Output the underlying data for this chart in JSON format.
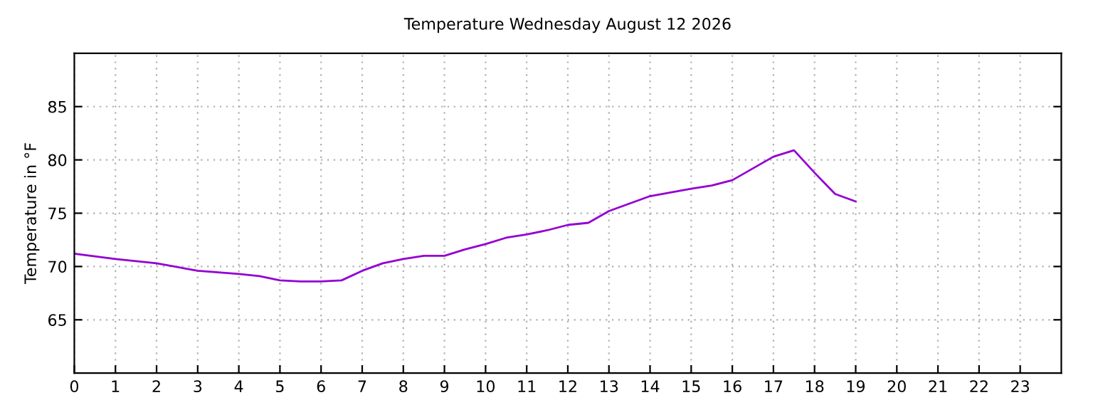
{
  "chart_data": {
    "type": "line",
    "title": "Temperature Wednesday August 12 2026",
    "ylabel": "Temperature in °F",
    "x": [
      0,
      1,
      2,
      3,
      4,
      4.5,
      5,
      5.5,
      6,
      6.5,
      7,
      7.5,
      8,
      8.5,
      9,
      9.5,
      10,
      10.5,
      11,
      11.5,
      12,
      12.5,
      13,
      13.5,
      14,
      15,
      15.5,
      16,
      16.5,
      17,
      17.5,
      18,
      18.5,
      19
    ],
    "series": [
      {
        "color": "#9400d3",
        "values": [
          71.2,
          70.7,
          70.3,
          69.6,
          69.3,
          69.1,
          68.7,
          68.6,
          68.6,
          68.7,
          69.6,
          70.3,
          70.7,
          71.0,
          71.0,
          71.6,
          72.1,
          72.7,
          73.0,
          73.4,
          73.9,
          74.1,
          75.2,
          75.9,
          76.6,
          77.3,
          77.6,
          78.1,
          79.2,
          80.3,
          80.9,
          78.8,
          76.8,
          76.1
        ]
      }
    ],
    "xlim": [
      0,
      24
    ],
    "xticks": [
      0,
      1,
      2,
      3,
      4,
      5,
      6,
      7,
      8,
      9,
      10,
      11,
      12,
      13,
      14,
      15,
      16,
      17,
      18,
      19,
      20,
      21,
      22,
      23
    ],
    "ylim": [
      60,
      90
    ],
    "yticks": [
      65,
      70,
      75,
      80,
      85
    ],
    "grid": true,
    "line_style": "solid",
    "marker": "none"
  }
}
